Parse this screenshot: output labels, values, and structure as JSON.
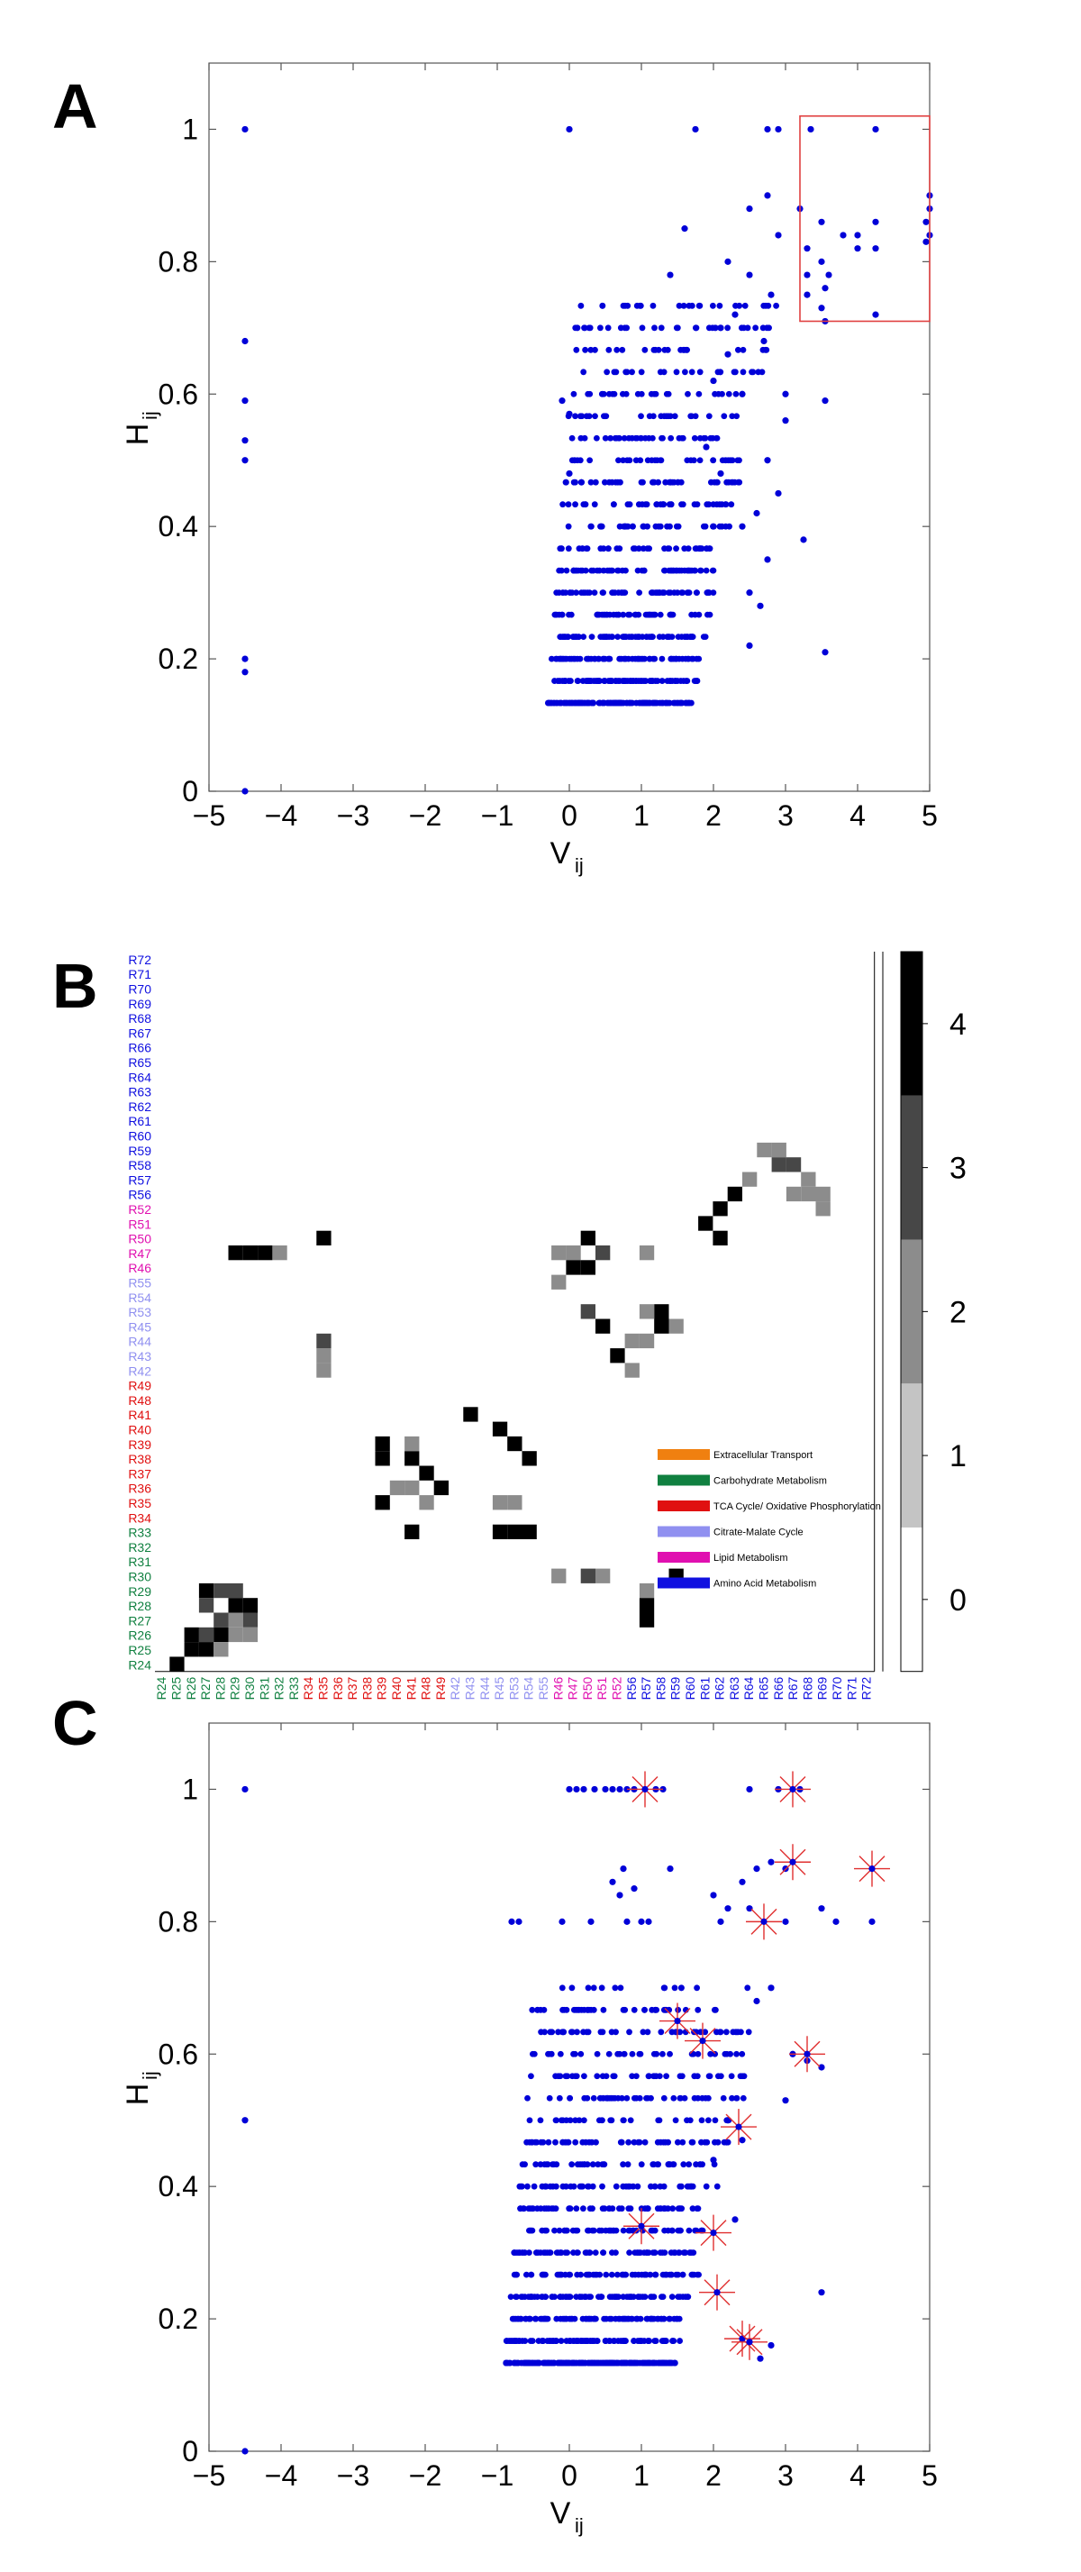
{
  "panels": {
    "a": "A",
    "b": "B",
    "c": "C"
  },
  "colors": {
    "points": "#0000d8",
    "box": "#e04040",
    "star": "#e03030"
  },
  "chart_data": [
    {
      "id": "A",
      "type": "scatter",
      "xlabel": "V",
      "xlabel_sub": "ij",
      "ylabel": "H",
      "ylabel_sub": "ij",
      "xlim": [
        -5,
        5
      ],
      "ylim": [
        0,
        1.1
      ],
      "xticks": [
        -5,
        -4,
        -3,
        -2,
        -1,
        0,
        1,
        2,
        3,
        4,
        5
      ],
      "yticks": [
        0,
        0.2,
        0.4,
        0.6,
        0.8,
        1
      ],
      "highlight_box": {
        "x": [
          3.2,
          5.0
        ],
        "y": [
          0.71,
          1.02
        ]
      },
      "series": [
        {
          "points": [
            [
              -4.5,
              1.0
            ],
            [
              -4.5,
              0.68
            ],
            [
              -4.5,
              0.59
            ],
            [
              -4.5,
              0.53
            ],
            [
              -4.5,
              0.5
            ],
            [
              -4.5,
              0.2
            ],
            [
              -4.5,
              0.18
            ],
            [
              -4.5,
              0.0
            ],
            [
              0.0,
              1.0
            ],
            [
              1.75,
              1.0
            ],
            [
              2.75,
              1.0
            ],
            [
              2.9,
              1.0
            ],
            [
              3.35,
              1.0
            ],
            [
              4.25,
              1.0
            ],
            [
              5.0,
              0.9
            ],
            [
              5.0,
              0.88
            ],
            [
              4.95,
              0.86
            ],
            [
              5.0,
              0.84
            ],
            [
              4.95,
              0.83
            ],
            [
              4.25,
              0.86
            ],
            [
              4.25,
              0.82
            ],
            [
              4.0,
              0.84
            ],
            [
              4.0,
              0.82
            ],
            [
              3.8,
              0.84
            ],
            [
              3.5,
              0.8
            ],
            [
              3.3,
              0.78
            ],
            [
              3.6,
              0.78
            ],
            [
              3.3,
              0.75
            ],
            [
              3.5,
              0.73
            ],
            [
              4.25,
              0.72
            ],
            [
              3.55,
              0.71
            ],
            [
              3.55,
              0.76
            ],
            [
              3.3,
              0.82
            ],
            [
              3.5,
              0.86
            ],
            [
              3.2,
              0.88
            ],
            [
              2.75,
              0.9
            ],
            [
              2.5,
              0.88
            ],
            [
              2.9,
              0.84
            ],
            [
              2.2,
              0.8
            ],
            [
              2.5,
              0.78
            ],
            [
              2.8,
              0.75
            ],
            [
              2.3,
              0.72
            ],
            [
              2.1,
              0.7
            ],
            [
              2.7,
              0.68
            ],
            [
              3.0,
              0.6
            ],
            [
              3.55,
              0.59
            ],
            [
              3.0,
              0.56
            ],
            [
              2.75,
              0.5
            ],
            [
              2.9,
              0.45
            ],
            [
              3.25,
              0.38
            ],
            [
              2.75,
              0.35
            ],
            [
              2.5,
              0.3
            ],
            [
              2.65,
              0.28
            ],
            [
              2.5,
              0.22
            ],
            [
              3.55,
              0.21
            ],
            [
              2.4,
              0.6
            ],
            [
              2.0,
              0.62
            ],
            [
              1.9,
              0.52
            ],
            [
              2.1,
              0.48
            ],
            [
              -0.1,
              0.59
            ],
            [
              0.0,
              0.48
            ],
            [
              0.0,
              0.57
            ],
            [
              1.6,
              0.85
            ],
            [
              1.4,
              0.78
            ],
            [
              2.2,
              0.66
            ],
            [
              2.4,
              0.4
            ],
            [
              2.6,
              0.42
            ]
          ]
        }
      ],
      "cluster": {
        "xrange": [
          -0.3,
          2.5
        ],
        "yrange": [
          0.12,
          0.74
        ],
        "count": 900,
        "seed": 11
      }
    },
    {
      "id": "B",
      "type": "heatmap",
      "row_labels": [
        "R72",
        "R71",
        "R70",
        "R69",
        "R68",
        "R67",
        "R66",
        "R65",
        "R64",
        "R63",
        "R62",
        "R61",
        "R60",
        "R59",
        "R58",
        "R57",
        "R56",
        "R52",
        "R51",
        "R50",
        "R47",
        "R46",
        "R55",
        "R54",
        "R53",
        "R45",
        "R44",
        "R43",
        "R42",
        "R49",
        "R48",
        "R41",
        "R40",
        "R39",
        "R38",
        "R37",
        "R36",
        "R35",
        "R34",
        "R33",
        "R32",
        "R31",
        "R30",
        "R29",
        "R28",
        "R27",
        "R26",
        "R25",
        "R24"
      ],
      "col_labels": [
        "R24",
        "R25",
        "R26",
        "R27",
        "R28",
        "R29",
        "R30",
        "R31",
        "R32",
        "R33",
        "R34",
        "R35",
        "R36",
        "R37",
        "R38",
        "R39",
        "R40",
        "R41",
        "R48",
        "R49",
        "R42",
        "R43",
        "R44",
        "R45",
        "R53",
        "R54",
        "R55",
        "R46",
        "R47",
        "R50",
        "R51",
        "R52",
        "R56",
        "R57",
        "R58",
        "R59",
        "R60",
        "R61",
        "R62",
        "R63",
        "R64",
        "R65",
        "R66",
        "R67",
        "R68",
        "R69",
        "R70",
        "R71",
        "R72"
      ],
      "label_colors": {
        "Amino Acid Metabolism": "#1010e0",
        "Lipid Metabolism": "#e010b0",
        "Citrate-Malate Cycle": "#9090f0",
        "TCA Cycle/ Oxidative Phosphorylation": "#e01010",
        "Carbohydrate Metabolism": "#108040",
        "Extracellular Transport": "#f08010"
      },
      "legend": [
        {
          "label": "Extracellular Transport",
          "color": "#f08010"
        },
        {
          "label": "Carbohydrate Metabolism",
          "color": "#108040"
        },
        {
          "label": "TCA Cycle/ Oxidative Phosphorylation",
          "color": "#e01010"
        },
        {
          "label": "Citrate-Malate Cycle",
          "color": "#9090f0"
        },
        {
          "label": "Lipid Metabolism",
          "color": "#e010b0"
        },
        {
          "label": "Amino Acid Metabolism",
          "color": "#1010e0"
        }
      ],
      "colorbar": {
        "ticks": [
          0,
          1,
          2,
          3,
          4
        ],
        "range": [
          0,
          4.5
        ]
      },
      "cells": [
        [
          1,
          48,
          4
        ],
        [
          2,
          47,
          4
        ],
        [
          3,
          43,
          4
        ],
        [
          4,
          43,
          3
        ],
        [
          5,
          43,
          3
        ],
        [
          6,
          44,
          4
        ],
        [
          3,
          44,
          3
        ],
        [
          5,
          44,
          4
        ],
        [
          4,
          45,
          3
        ],
        [
          5,
          45,
          2
        ],
        [
          6,
          45,
          3
        ],
        [
          2,
          46,
          4
        ],
        [
          3,
          46,
          3
        ],
        [
          4,
          46,
          4
        ],
        [
          5,
          46,
          2
        ],
        [
          6,
          46,
          2
        ],
        [
          3,
          47,
          4
        ],
        [
          4,
          47,
          2
        ],
        [
          5,
          20,
          4
        ],
        [
          6,
          20,
          4
        ],
        [
          7,
          20,
          4
        ],
        [
          8,
          20,
          2
        ],
        [
          11,
          19,
          4
        ],
        [
          11,
          27,
          2
        ],
        [
          11,
          26,
          3
        ],
        [
          11,
          28,
          2
        ],
        [
          15,
          33,
          4
        ],
        [
          15,
          34,
          4
        ],
        [
          17,
          34,
          4
        ],
        [
          17,
          33,
          2
        ],
        [
          16,
          36,
          2
        ],
        [
          17,
          36,
          2
        ],
        [
          18,
          35,
          4
        ],
        [
          19,
          36,
          4
        ],
        [
          18,
          37,
          2
        ],
        [
          21,
          31,
          4
        ],
        [
          23,
          32,
          4
        ],
        [
          24,
          33,
          4
        ],
        [
          25,
          34,
          4
        ],
        [
          23,
          37,
          2
        ],
        [
          24,
          37,
          2
        ],
        [
          15,
          37,
          4
        ],
        [
          17,
          39,
          4
        ],
        [
          23,
          39,
          4
        ],
        [
          24,
          39,
          4
        ],
        [
          25,
          39,
          4
        ],
        [
          27,
          20,
          2
        ],
        [
          28,
          20,
          2
        ],
        [
          29,
          19,
          4
        ],
        [
          30,
          20,
          3
        ],
        [
          28,
          21,
          4
        ],
        [
          29,
          21,
          4
        ],
        [
          27,
          22,
          2
        ],
        [
          29,
          24,
          3
        ],
        [
          30,
          25,
          4
        ],
        [
          32,
          26,
          2
        ],
        [
          33,
          26,
          2
        ],
        [
          34,
          24,
          4
        ],
        [
          34,
          25,
          4
        ],
        [
          35,
          25,
          2
        ],
        [
          33,
          20,
          2
        ],
        [
          33,
          24,
          2
        ],
        [
          31,
          27,
          4
        ],
        [
          32,
          28,
          2
        ],
        [
          27,
          42,
          2
        ],
        [
          29,
          42,
          3
        ],
        [
          30,
          42,
          2
        ],
        [
          35,
          42,
          4
        ],
        [
          33,
          43,
          2
        ],
        [
          33,
          44,
          4
        ],
        [
          33,
          45,
          4
        ],
        [
          37,
          18,
          4
        ],
        [
          38,
          17,
          4
        ],
        [
          38,
          19,
          4
        ],
        [
          39,
          16,
          4
        ],
        [
          40,
          15,
          2
        ],
        [
          41,
          13,
          2
        ],
        [
          42,
          13,
          2
        ],
        [
          42,
          14,
          3
        ],
        [
          43,
          14,
          3
        ],
        [
          44,
          15,
          2
        ],
        [
          44,
          16,
          2
        ],
        [
          45,
          16,
          2
        ],
        [
          45,
          17,
          2
        ],
        [
          43,
          16,
          2
        ]
      ]
    },
    {
      "id": "C",
      "type": "scatter",
      "xlabel": "V",
      "xlabel_sub": "ij",
      "ylabel": "H",
      "ylabel_sub": "ij",
      "xlim": [
        -5,
        5
      ],
      "ylim": [
        0,
        1.1
      ],
      "xticks": [
        -5,
        -4,
        -3,
        -2,
        -1,
        0,
        1,
        2,
        3,
        4,
        5
      ],
      "yticks": [
        0,
        0.2,
        0.4,
        0.6,
        0.8,
        1
      ],
      "series": [
        {
          "points": [
            [
              -4.5,
              1.0
            ],
            [
              -4.5,
              0.5
            ],
            [
              -4.5,
              0.0
            ],
            [
              0.0,
              1.0
            ],
            [
              0.1,
              1.0
            ],
            [
              0.2,
              1.0
            ],
            [
              0.35,
              1.0
            ],
            [
              0.5,
              1.0
            ],
            [
              0.6,
              1.0
            ],
            [
              0.7,
              1.0
            ],
            [
              0.8,
              1.0
            ],
            [
              0.9,
              1.0
            ],
            [
              1.2,
              1.0
            ],
            [
              1.3,
              1.0
            ],
            [
              2.5,
              1.0
            ],
            [
              2.9,
              1.0
            ],
            [
              3.2,
              1.0
            ],
            [
              -0.8,
              0.8
            ],
            [
              -0.7,
              0.8
            ],
            [
              -0.1,
              0.8
            ],
            [
              0.3,
              0.8
            ],
            [
              0.8,
              0.8
            ],
            [
              1.0,
              0.8
            ],
            [
              1.1,
              0.8
            ],
            [
              2.1,
              0.8
            ],
            [
              2.2,
              0.82
            ],
            [
              3.0,
              0.8
            ],
            [
              3.7,
              0.8
            ],
            [
              4.2,
              0.8
            ],
            [
              0.6,
              0.86
            ],
            [
              0.7,
              0.84
            ],
            [
              0.75,
              0.88
            ],
            [
              2.8,
              0.89
            ],
            [
              2.6,
              0.88
            ],
            [
              3.0,
              0.88
            ],
            [
              1.4,
              0.88
            ],
            [
              0.9,
              0.85
            ],
            [
              2.5,
              0.82
            ],
            [
              2.0,
              0.84
            ],
            [
              2.4,
              0.86
            ],
            [
              3.5,
              0.82
            ],
            [
              3.1,
              0.6
            ],
            [
              3.3,
              0.59
            ],
            [
              3.5,
              0.58
            ],
            [
              3.0,
              0.53
            ],
            [
              2.8,
              0.7
            ],
            [
              2.6,
              0.68
            ],
            [
              2.2,
              0.5
            ],
            [
              2.4,
              0.47
            ],
            [
              2.0,
              0.44
            ],
            [
              2.3,
              0.35
            ],
            [
              3.5,
              0.24
            ],
            [
              2.8,
              0.16
            ],
            [
              2.65,
              0.14
            ]
          ]
        }
      ],
      "cluster": {
        "xrange": [
          -0.9,
          2.4
        ],
        "yrange": [
          0.12,
          0.7
        ],
        "count": 1100,
        "seed": 7
      },
      "highlighted": [
        [
          1.05,
          1.0
        ],
        [
          3.1,
          1.0
        ],
        [
          3.1,
          0.89
        ],
        [
          4.2,
          0.88
        ],
        [
          2.7,
          0.8
        ],
        [
          1.5,
          0.65
        ],
        [
          1.85,
          0.62
        ],
        [
          3.3,
          0.6
        ],
        [
          2.35,
          0.49
        ],
        [
          1.0,
          0.34
        ],
        [
          2.0,
          0.33
        ],
        [
          2.05,
          0.24
        ],
        [
          2.4,
          0.17
        ],
        [
          2.5,
          0.165
        ]
      ]
    }
  ]
}
